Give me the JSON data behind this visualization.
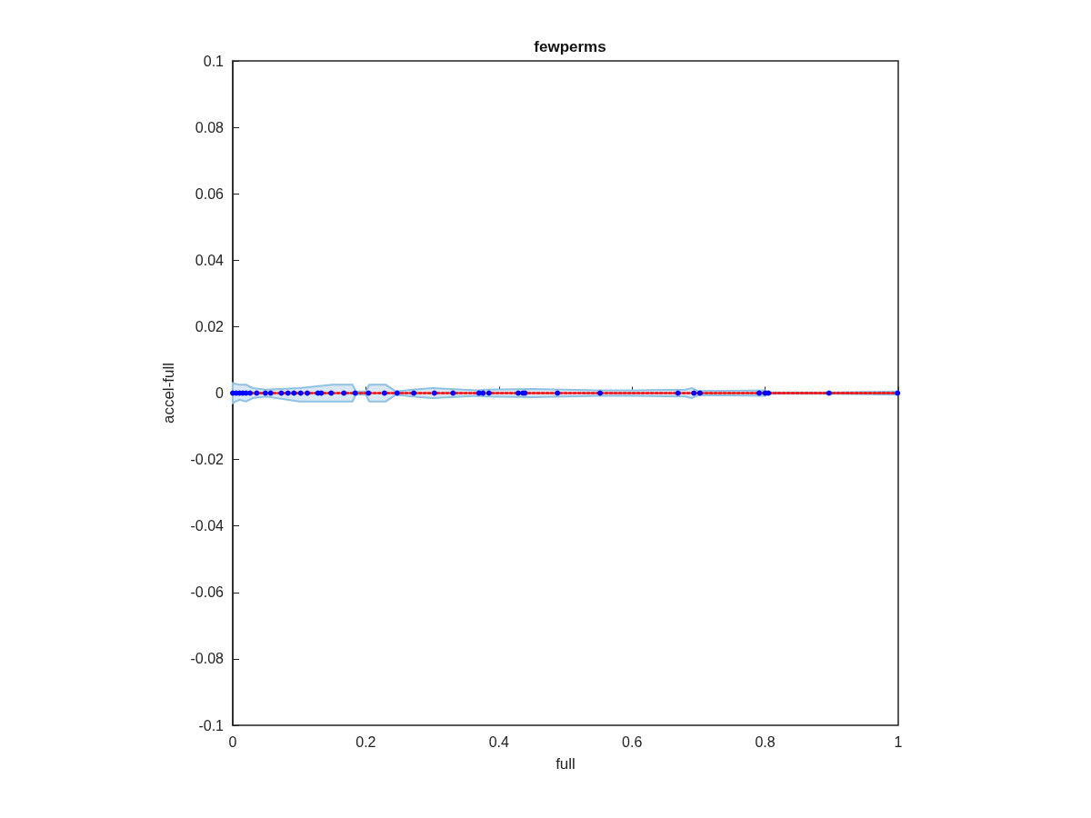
{
  "chart_data": {
    "type": "line",
    "title": "fewperms",
    "xlabel": "full",
    "ylabel": "accel-full",
    "xlim": [
      0,
      1
    ],
    "ylim": [
      -0.1,
      0.1
    ],
    "xticks": [
      0,
      0.2,
      0.4,
      0.6,
      0.8,
      1
    ],
    "yticks": [
      -0.1,
      -0.08,
      -0.06,
      -0.04,
      -0.02,
      0,
      0.02,
      0.04,
      0.06,
      0.08,
      0.1
    ],
    "grid": false,
    "series": [
      {
        "color": "#ff0000",
        "line_style": "dotted",
        "marker": "none",
        "x": [
          0,
          0.01,
          0.02,
          0.03,
          0.05,
          0.1,
          0.15,
          0.18,
          0.185,
          0.2,
          0.205,
          0.23,
          0.245,
          0.27,
          0.3,
          0.37,
          0.38,
          0.45,
          0.5,
          0.55,
          0.6,
          0.68,
          0.69,
          0.7,
          0.8,
          0.805,
          0.9,
          1
        ],
        "values": [
          0,
          0,
          0,
          0,
          0,
          0,
          0,
          0,
          0,
          0,
          0,
          0,
          0,
          0,
          0,
          0,
          0,
          0,
          0,
          0,
          0,
          0,
          0,
          0,
          0,
          0,
          0,
          0
        ],
        "lower": [
          -0.003,
          -0.002,
          -0.0025,
          -0.0015,
          -0.001,
          -0.0025,
          -0.0025,
          -0.0025,
          -0.0005,
          -0.0005,
          -0.0025,
          -0.0025,
          -0.0005,
          -0.001,
          -0.0015,
          -0.0008,
          -0.001,
          -0.0012,
          -0.001,
          -0.0008,
          -0.0008,
          -0.001,
          -0.0015,
          -0.0006,
          -0.0008,
          -0.0002,
          -0.0002,
          -0.0005
        ],
        "upper": [
          0.003,
          0.0025,
          0.0025,
          0.0015,
          0.001,
          0.0015,
          0.0025,
          0.0025,
          0.0005,
          0.0005,
          0.0025,
          0.0025,
          0.0005,
          0.001,
          0.0015,
          0.0008,
          0.001,
          0.0012,
          0.001,
          0.0008,
          0.0008,
          0.001,
          0.0015,
          0.0006,
          0.0008,
          0.0002,
          0.0002,
          0.0005
        ]
      },
      {
        "type": "scatter",
        "color": "#0000ff",
        "marker": "circle",
        "x": [
          0,
          0.005,
          0.01,
          0.015,
          0.02,
          0.026,
          0.036,
          0.049,
          0.057,
          0.073,
          0.083,
          0.092,
          0.102,
          0.112,
          0.128,
          0.133,
          0.148,
          0.167,
          0.184,
          0.204,
          0.228,
          0.247,
          0.272,
          0.303,
          0.331,
          0.37,
          0.376,
          0.385,
          0.429,
          0.436,
          0.439,
          0.488,
          0.552,
          0.669,
          0.693,
          0.702,
          0.791,
          0.8,
          0.805,
          0.896,
          0.999
        ],
        "values": [
          0,
          0,
          0,
          0,
          0,
          0,
          0,
          0,
          0,
          0,
          0,
          0,
          0,
          0,
          0,
          0,
          0,
          0,
          0,
          0,
          0,
          0,
          0,
          0,
          0,
          0,
          0,
          0,
          0,
          0,
          0,
          0,
          0,
          0,
          0,
          0,
          0,
          0,
          0,
          0,
          0
        ]
      }
    ]
  }
}
